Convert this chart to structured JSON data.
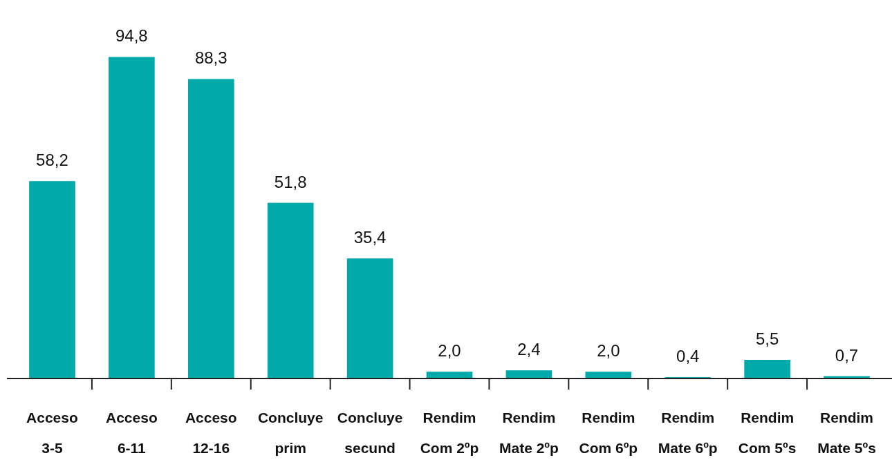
{
  "chart_data": {
    "type": "bar",
    "categories": [
      "Acceso\n3-5",
      "Acceso\n6-11",
      "Acceso\n12-16",
      "Concluye\nprim",
      "Concluye\nsecund",
      "Rendim\nCom 2ºp",
      "Rendim\nMate 2ºp",
      "Rendim\nCom 6ºp",
      "Rendim\nMate 6ºp",
      "Rendim\nCom 5ºs",
      "Rendim\nMate 5ºs"
    ],
    "values": [
      58.2,
      94.8,
      88.3,
      51.8,
      35.4,
      2.0,
      2.4,
      2.0,
      0.4,
      5.5,
      0.7
    ],
    "value_labels": [
      "58,2",
      "94,8",
      "88,3",
      "51,8",
      "35,4",
      "2,0",
      "2,4",
      "2,0",
      "0,4",
      "5,5",
      "0,7"
    ],
    "color": "#00aaaa"
  }
}
